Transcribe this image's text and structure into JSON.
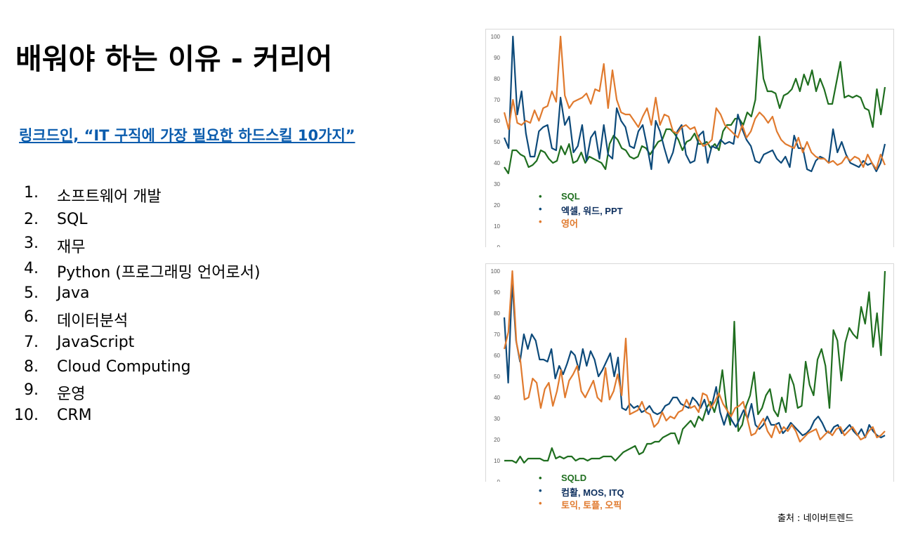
{
  "slide": {
    "title": "배워야 하는 이유 - 커리어",
    "link": "링크드인, “IT 구직에 가장 필요한 하드스킬 10가지”",
    "skills": [
      {
        "num": "1.",
        "label": "소프트웨어 개발"
      },
      {
        "num": "2.",
        "label": "SQL"
      },
      {
        "num": "3.",
        "label": "재무"
      },
      {
        "num": "4.",
        "label": "Python (프로그래밍 언어로서)"
      },
      {
        "num": "5.",
        "label": "Java"
      },
      {
        "num": "6.",
        "label": "데이터분석"
      },
      {
        "num": "7.",
        "label": "JavaScript"
      },
      {
        "num": "8.",
        "label": "Cloud Computing"
      },
      {
        "num": "9.",
        "label": "운영"
      },
      {
        "num": "10.",
        "label": "CRM"
      }
    ],
    "source": "출처 : 네이버트렌드"
  },
  "chart_data": [
    {
      "type": "line",
      "ylim": [
        0,
        100
      ],
      "yticks": [
        0,
        10,
        20,
        30,
        40,
        50,
        60,
        70,
        80,
        90,
        100
      ],
      "legend_position": "bottom-left",
      "colors": [
        "#1f6e1f",
        "#0d4a7a",
        "#e07a2e"
      ],
      "series": [
        {
          "name": "SQL",
          "values": [
            38,
            35,
            46,
            46,
            44,
            43,
            38,
            39,
            41,
            46,
            45,
            42,
            40,
            41,
            48,
            44,
            49,
            40,
            41,
            45,
            40,
            43,
            42,
            41,
            40,
            37,
            49,
            53,
            51,
            47,
            46,
            43,
            42,
            43,
            48,
            47,
            44,
            47,
            50,
            51,
            56,
            56,
            54,
            51,
            46,
            50,
            51,
            54,
            49,
            49,
            50,
            47,
            49,
            46,
            55,
            58,
            58,
            61,
            61,
            58,
            64,
            62,
            70,
            100,
            80,
            74,
            74,
            73,
            66,
            72,
            73,
            75,
            80,
            74,
            82,
            77,
            84,
            74,
            80,
            75,
            68,
            68,
            78,
            88,
            71,
            72,
            71,
            72,
            71,
            66,
            65,
            57,
            75,
            63,
            76
          ]
        },
        {
          "name": "엑셀, 워드, PPT",
          "values": [
            52,
            47,
            100,
            63,
            74,
            54,
            43,
            43,
            55,
            57,
            58,
            47,
            46,
            71,
            58,
            62,
            45,
            48,
            58,
            41,
            52,
            55,
            42,
            58,
            44,
            42,
            66,
            60,
            57,
            48,
            47,
            55,
            58,
            48,
            37,
            60,
            55,
            47,
            40,
            45,
            55,
            58,
            44,
            40,
            41,
            53,
            55,
            40,
            48,
            47,
            51,
            49,
            50,
            49,
            63,
            56,
            51,
            48,
            41,
            40,
            44,
            45,
            46,
            42,
            40,
            43,
            38,
            53,
            47,
            47,
            37,
            36,
            41,
            43,
            42,
            40,
            56,
            45,
            50,
            44,
            40,
            39,
            38,
            41,
            39,
            40,
            36,
            40,
            49
          ]
        },
        {
          "name": "영어",
          "values": [
            64,
            56,
            70,
            59,
            58,
            60,
            59,
            65,
            60,
            66,
            67,
            74,
            69,
            100,
            72,
            66,
            69,
            70,
            71,
            73,
            68,
            75,
            74,
            87,
            66,
            84,
            70,
            64,
            63,
            63,
            60,
            57,
            62,
            66,
            58,
            71,
            58,
            63,
            62,
            55,
            54,
            57,
            58,
            56,
            57,
            51,
            48,
            49,
            51,
            66,
            63,
            58,
            56,
            54,
            52,
            58,
            52,
            55,
            61,
            64,
            62,
            59,
            62,
            55,
            51,
            49,
            48,
            47,
            52,
            45,
            50,
            45,
            43,
            42,
            42,
            40,
            41,
            39,
            40,
            43,
            41,
            43,
            42,
            38,
            44,
            40,
            37,
            44,
            39
          ]
        }
      ]
    },
    {
      "type": "line",
      "ylim": [
        0,
        100
      ],
      "yticks": [
        0,
        10,
        20,
        30,
        40,
        50,
        60,
        70,
        80,
        90,
        100
      ],
      "legend_position": "bottom-left",
      "colors": [
        "#1f6e1f",
        "#0d4a7a",
        "#e07a2e"
      ],
      "series": [
        {
          "name": "SQLD",
          "values": [
            10,
            10,
            10,
            9,
            12,
            9,
            11,
            11,
            11,
            11,
            10,
            10,
            16,
            11,
            12,
            11,
            12,
            12,
            10,
            11,
            11,
            10,
            11,
            11,
            11,
            12,
            12,
            12,
            10,
            12,
            14,
            15,
            16,
            17,
            13,
            14,
            18,
            18,
            19,
            19,
            21,
            22,
            23,
            23,
            18,
            25,
            27,
            29,
            26,
            31,
            29,
            35,
            38,
            33,
            40,
            53,
            36,
            27,
            76,
            24,
            27,
            36,
            41,
            52,
            32,
            35,
            41,
            44,
            34,
            31,
            40,
            33,
            51,
            46,
            35,
            36,
            57,
            46,
            41,
            58,
            63,
            55,
            35,
            72,
            67,
            48,
            66,
            73,
            70,
            68,
            83,
            75,
            90,
            64,
            80,
            60,
            100
          ]
        },
        {
          "name": "컴활, MOS, ITQ",
          "values": [
            78,
            47,
            95,
            67,
            57,
            70,
            63,
            70,
            67,
            58,
            58,
            57,
            63,
            49,
            55,
            51,
            56,
            62,
            60,
            53,
            63,
            55,
            62,
            58,
            50,
            53,
            57,
            61,
            50,
            59,
            35,
            34,
            37,
            35,
            36,
            33,
            34,
            36,
            33,
            32,
            33,
            36,
            37,
            40,
            40,
            37,
            36,
            35,
            40,
            38,
            35,
            39,
            32,
            37,
            45,
            33,
            27,
            33,
            29,
            26,
            30,
            34,
            30,
            37,
            27,
            25,
            27,
            31,
            27,
            27,
            28,
            23,
            25,
            28,
            26,
            24,
            22,
            23,
            25,
            29,
            31,
            28,
            24,
            23,
            26,
            27,
            23,
            25,
            27,
            24,
            22,
            25,
            21,
            27,
            24,
            22,
            21,
            22
          ]
        },
        {
          "name": "토익, 토플, 오픽",
          "values": [
            63,
            71,
            100,
            66,
            57,
            39,
            40,
            49,
            47,
            35,
            44,
            47,
            36,
            43,
            53,
            40,
            48,
            51,
            55,
            43,
            40,
            44,
            48,
            40,
            38,
            54,
            39,
            43,
            51,
            41,
            68,
            32,
            33,
            34,
            38,
            33,
            32,
            26,
            28,
            33,
            29,
            31,
            30,
            33,
            34,
            39,
            35,
            36,
            33,
            42,
            41,
            35,
            38,
            42,
            37,
            34,
            31,
            35,
            36,
            38,
            30,
            22,
            23,
            27,
            30,
            24,
            21,
            27,
            23,
            26,
            24,
            27,
            24,
            19,
            21,
            23,
            24,
            25,
            20,
            22,
            24,
            22,
            25,
            26,
            22,
            24,
            26,
            23,
            20,
            21,
            24,
            26,
            21,
            22,
            24
          ]
        }
      ]
    }
  ]
}
